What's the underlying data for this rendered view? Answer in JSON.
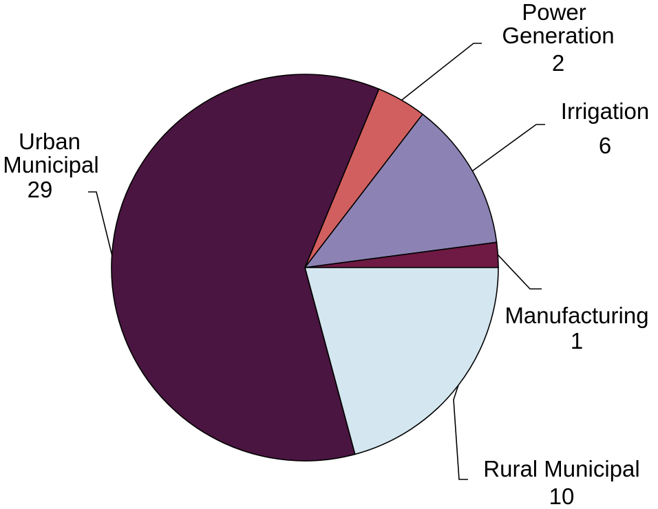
{
  "chart_data": {
    "type": "pie",
    "title": "",
    "start_angle_deg": 22.5,
    "direction": "clockwise",
    "slices": [
      {
        "key": "power",
        "label_lines": [
          "Power",
          "Generation"
        ],
        "value": 2,
        "value_label": "2",
        "color": "#D25F5F"
      },
      {
        "key": "irrigation",
        "label_lines": [
          "Irrigation"
        ],
        "value": 6,
        "value_label": "6",
        "color": "#8C83B4"
      },
      {
        "key": "manufacturing",
        "label_lines": [
          "Manufacturing"
        ],
        "value": 1,
        "value_label": "1",
        "color": "#6E1A44"
      },
      {
        "key": "rural",
        "label_lines": [
          "Rural Municipal"
        ],
        "value": 10,
        "value_label": "10",
        "color": "#D4E6EF"
      },
      {
        "key": "urban",
        "label_lines": [
          "Urban",
          "Municipal"
        ],
        "value": 29,
        "value_label": "29",
        "color": "#4A1540"
      }
    ],
    "legend": "none",
    "labels": "outside with leader lines"
  }
}
